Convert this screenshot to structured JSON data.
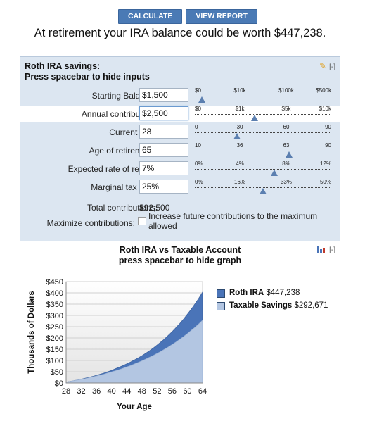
{
  "header": {
    "calculate_label": "CALCULATE",
    "view_report_label": "VIEW REPORT",
    "headline": "At retirement your IRA balance could be worth $447,238."
  },
  "inputs_panel": {
    "title_line1": "Roth IRA savings:",
    "title_line2": "Press spacebar to hide inputs",
    "collapse_label": "[-]",
    "rows": [
      {
        "label": "Starting Balance:",
        "value": "$1,500",
        "ticks": [
          "$0",
          "$10k",
          "$100k",
          "$500k"
        ],
        "thumb_fraction": 0.05
      },
      {
        "label": "Annual contribution:",
        "value": "$2,500",
        "ticks": [
          "$0",
          "$1k",
          "$5k",
          "$10k"
        ],
        "thumb_fraction": 0.44
      },
      {
        "label": "Current age:",
        "value": "28",
        "ticks": [
          "0",
          "30",
          "60",
          "90"
        ],
        "thumb_fraction": 0.31
      },
      {
        "label": "Age of retirement:",
        "value": "65",
        "ticks": [
          "10",
          "36",
          "63",
          "90"
        ],
        "thumb_fraction": 0.69
      },
      {
        "label": "Expected rate of return:",
        "value": "7%",
        "ticks": [
          "0%",
          "4%",
          "8%",
          "12%"
        ],
        "thumb_fraction": 0.58
      },
      {
        "label": "Marginal tax rate:",
        "value": "25%",
        "ticks": [
          "0%",
          "16%",
          "33%",
          "50%"
        ],
        "thumb_fraction": 0.5
      }
    ],
    "total_label": "Total contributions:",
    "total_value": "$92,500",
    "maximize_label": "Maximize contributions:",
    "maximize_text": "Increase future contributions to the maximum allowed",
    "maximize_checked": false
  },
  "chart_panel": {
    "title_line1": "Roth IRA vs Taxable Account",
    "title_line2": "press spacebar to hide graph",
    "collapse_label": "[-]",
    "legend": [
      {
        "name": "Roth IRA",
        "value": "$447,238",
        "color": "#4a74b8"
      },
      {
        "name": "Taxable Savings",
        "value": "$292,671",
        "color": "#b3c6e2"
      }
    ]
  },
  "chart_data": {
    "type": "area",
    "ylabel": "Thousands of Dollars",
    "xlabel": "Your Age",
    "x": [
      28,
      29,
      30,
      31,
      32,
      33,
      34,
      35,
      36,
      37,
      38,
      39,
      40,
      41,
      42,
      43,
      44,
      45,
      46,
      47,
      48,
      49,
      50,
      51,
      52,
      53,
      54,
      55,
      56,
      57,
      58,
      59,
      60,
      61,
      62,
      63,
      64
    ],
    "x_ticks": [
      "28",
      "32",
      "36",
      "40",
      "44",
      "48",
      "52",
      "56",
      "60",
      "64"
    ],
    "y_ticks": [
      "$0",
      "$50",
      "$100",
      "$150",
      "$200",
      "$250",
      "$300",
      "$350",
      "$400",
      "$450"
    ],
    "ylim": [
      0,
      450
    ],
    "series": [
      {
        "name": "Roth IRA",
        "color": "#4a74b8",
        "values": [
          4,
          7,
          10,
          13,
          17,
          21,
          25,
          29,
          34,
          39,
          44,
          50,
          56,
          63,
          70,
          77,
          85,
          93,
          102,
          111,
          121,
          132,
          143,
          155,
          168,
          182,
          196,
          212,
          228,
          246,
          264,
          284,
          305,
          327,
          351,
          376,
          403
        ]
      },
      {
        "name": "Taxable Savings",
        "color": "#b3c6e2",
        "values": [
          4,
          7,
          10,
          13,
          16,
          19,
          23,
          27,
          31,
          35,
          39,
          44,
          49,
          54,
          59,
          65,
          71,
          77,
          84,
          91,
          98,
          106,
          114,
          122,
          131,
          140,
          150,
          160,
          171,
          182,
          194,
          206,
          219,
          233,
          247,
          262,
          278
        ]
      }
    ]
  }
}
